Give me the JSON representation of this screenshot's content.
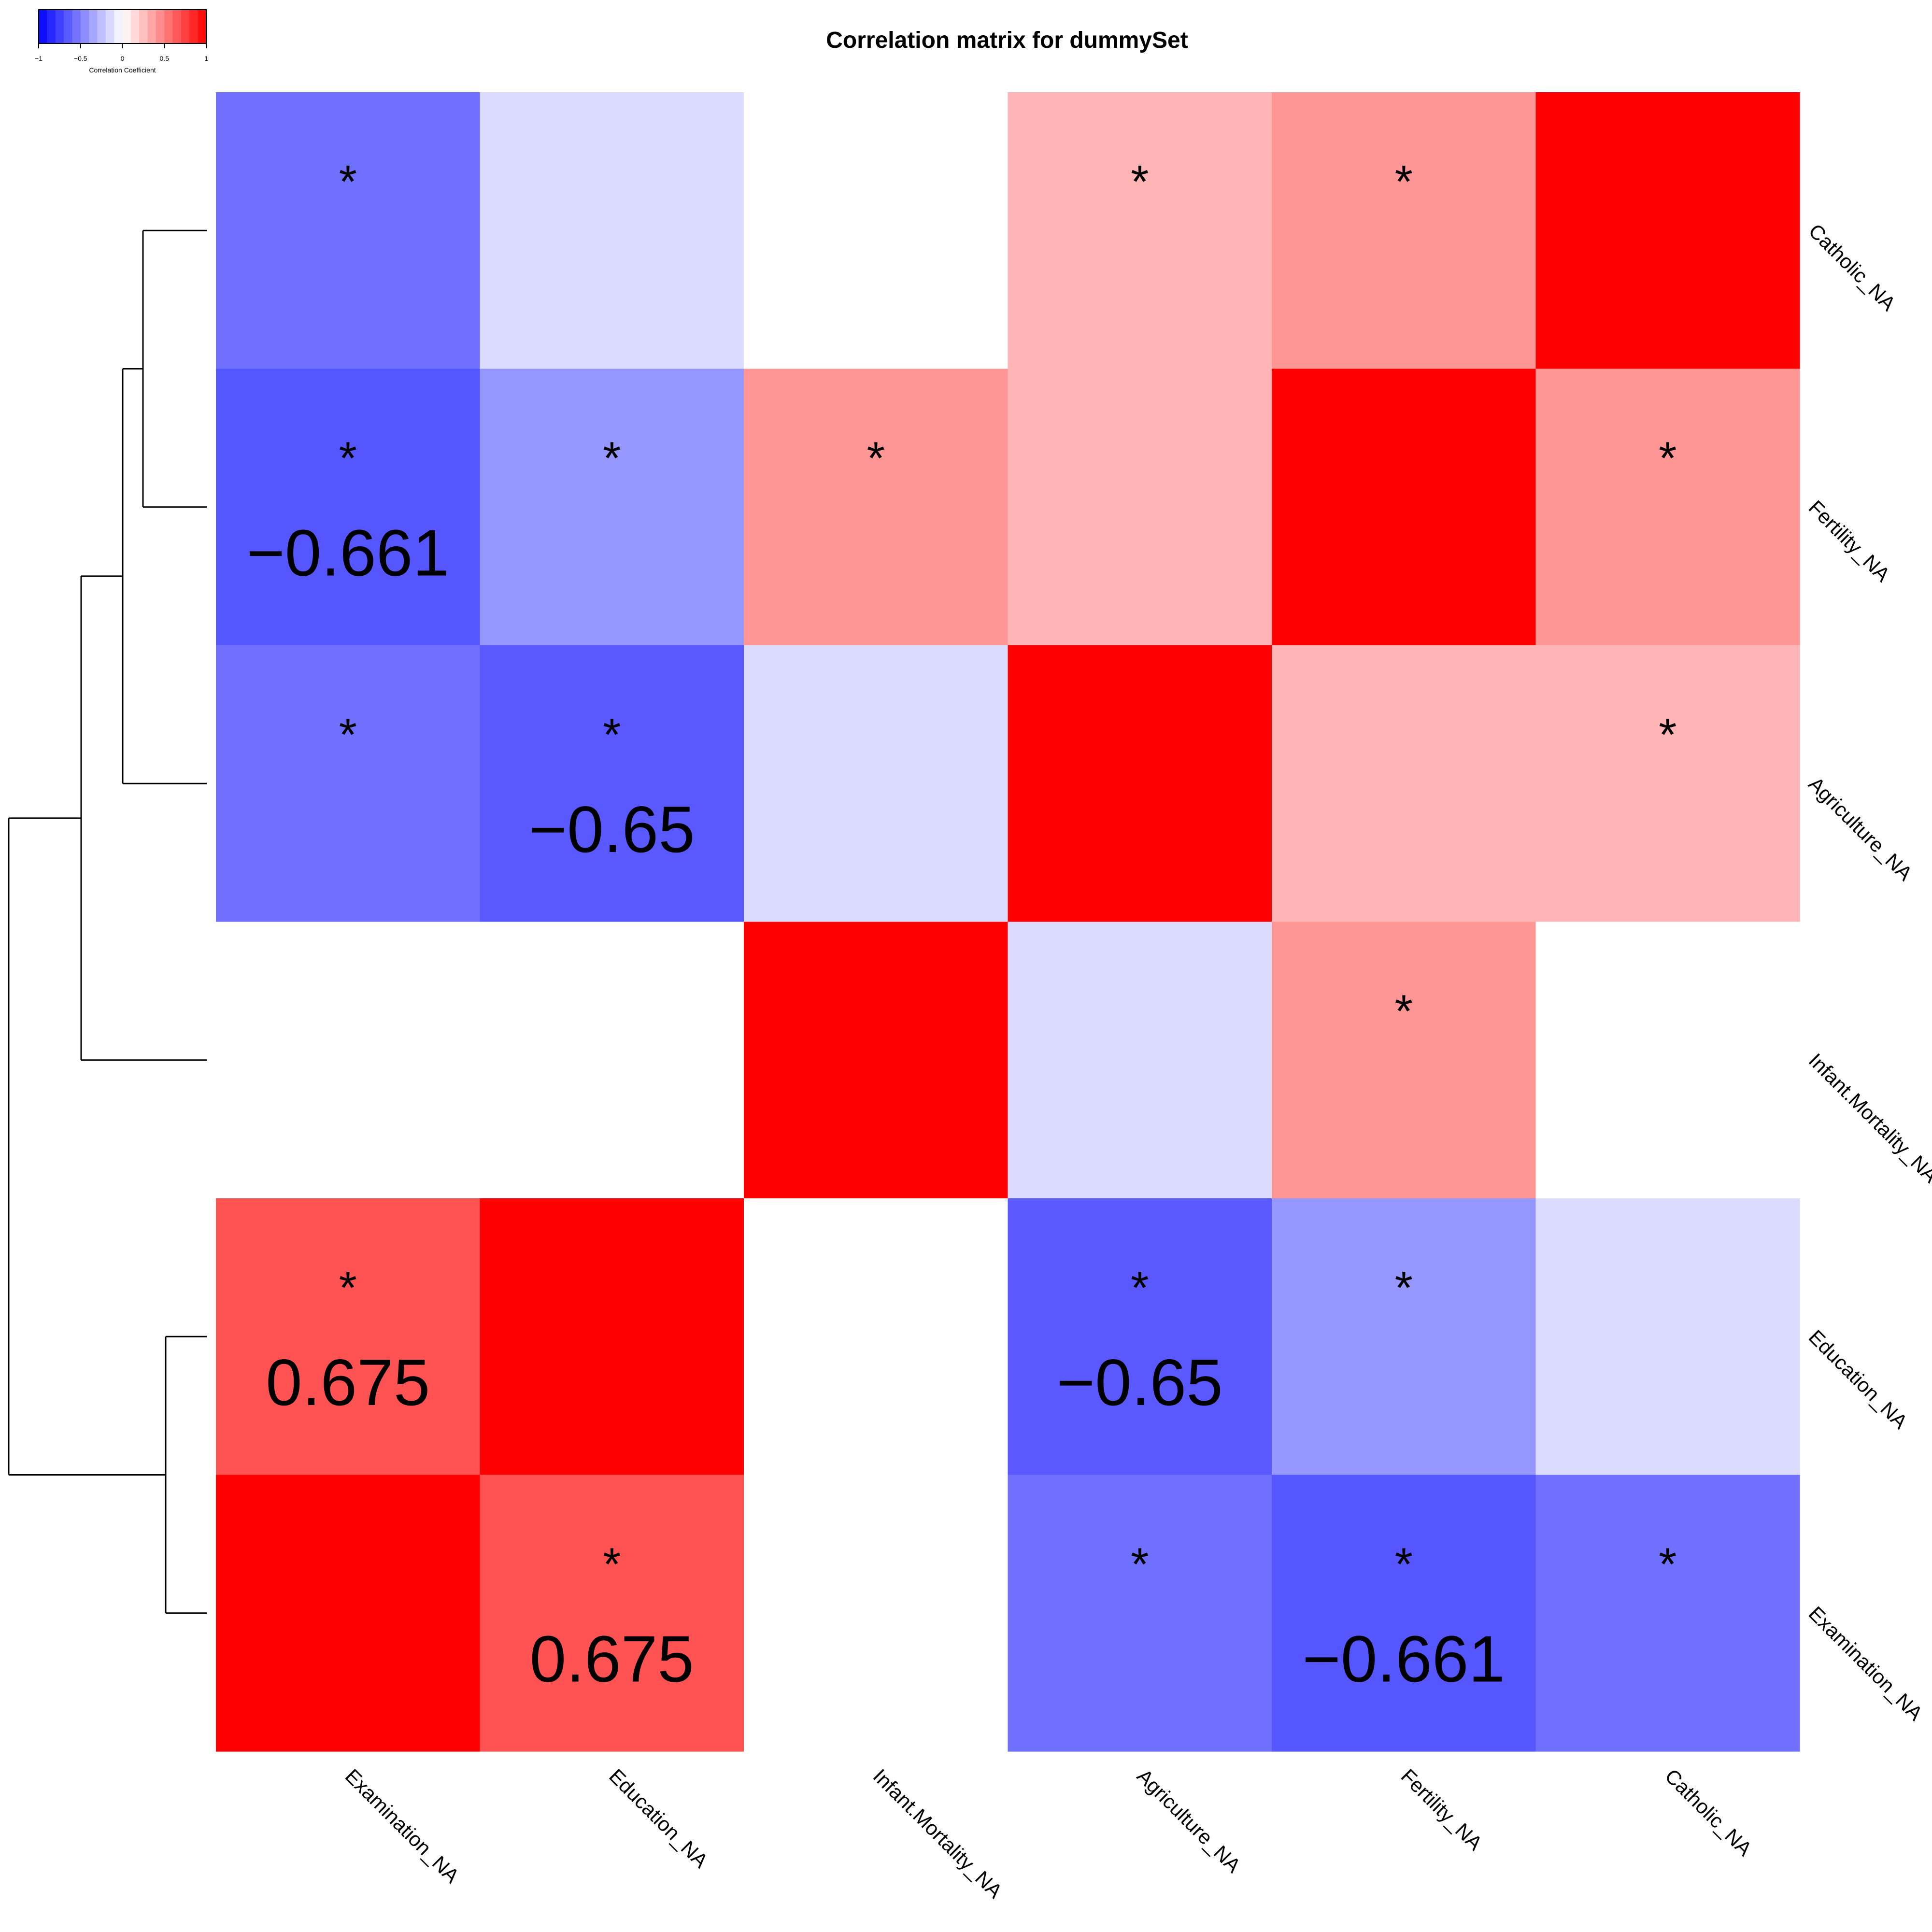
{
  "chart_data": {
    "type": "heatmap",
    "title": "Correlation matrix for dummySet",
    "row_labels": [
      "Catholic_NA",
      "Fertility_NA",
      "Agriculture_NA",
      "Infant.Mortality_NA",
      "Education_NA",
      "Examination_NA"
    ],
    "col_labels": [
      "Examination_NA",
      "Education_NA",
      "Infant.Mortality_NA",
      "Agriculture_NA",
      "Fertility_NA",
      "Catholic_NA"
    ],
    "values": [
      [
        -0.56,
        -0.14,
        0.0,
        0.29,
        0.41,
        1.0
      ],
      [
        -0.661,
        -0.41,
        0.41,
        0.29,
        1.0,
        0.41
      ],
      [
        -0.56,
        -0.65,
        -0.14,
        1.0,
        0.29,
        0.29
      ],
      [
        0.0,
        0.0,
        1.0,
        -0.14,
        0.41,
        0.0
      ],
      [
        0.675,
        1.0,
        0.0,
        -0.65,
        -0.41,
        -0.14
      ],
      [
        1.0,
        0.675,
        0.0,
        -0.56,
        -0.661,
        -0.56
      ]
    ],
    "significant": [
      [
        true,
        false,
        false,
        true,
        true,
        false
      ],
      [
        true,
        true,
        true,
        false,
        false,
        true
      ],
      [
        true,
        true,
        false,
        false,
        false,
        true
      ],
      [
        false,
        false,
        false,
        false,
        true,
        false
      ],
      [
        true,
        false,
        false,
        true,
        true,
        false
      ],
      [
        false,
        true,
        false,
        true,
        true,
        true
      ]
    ],
    "value_labels": [
      [
        "",
        "",
        "",
        "",
        "",
        ""
      ],
      [
        "−0.661",
        "",
        "",
        "",
        "",
        ""
      ],
      [
        "",
        "−0.65",
        "",
        "",
        "",
        ""
      ],
      [
        "",
        "",
        "",
        "",
        "",
        ""
      ],
      [
        "0.675",
        "",
        "",
        "−0.65",
        "",
        ""
      ],
      [
        "",
        "0.675",
        "",
        "",
        "−0.661",
        ""
      ]
    ],
    "significance_marker": "*",
    "color_scale": {
      "min": -1,
      "max": 1,
      "low": "#0000ff",
      "mid": "#ffffff",
      "high": "#ff0000"
    },
    "legend": {
      "title": "Correlation Coefficient",
      "ticks": [
        "−1",
        "−0.5",
        "0",
        "0.5",
        "1"
      ],
      "placement": "top-left"
    },
    "row_dendrogram": true
  }
}
